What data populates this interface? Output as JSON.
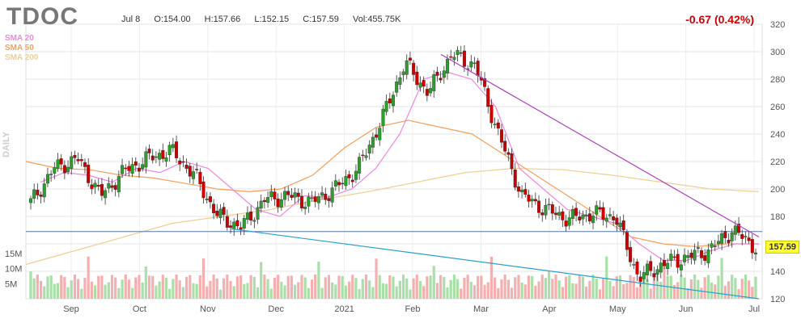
{
  "header": {
    "ticker": "TDOC",
    "date": "Jul 8",
    "open": "O:154.00",
    "high": "H:157.66",
    "low": "L:152.15",
    "close": "C:157.59",
    "volume": "Vol:455.75K",
    "change": "-0.67 (0.42%)",
    "side_label": "DAILY",
    "last_price": "157.59"
  },
  "legend": {
    "sma20": "SMA 20",
    "sma50": "SMA 50",
    "sma200": "SMA 200"
  },
  "colors": {
    "up": "#2ca02c",
    "down": "#cc0000",
    "sma20": "#ee88dd",
    "sma50": "#f5a05a",
    "sma200": "#f0d090",
    "trend_upper": "#b040c0",
    "trend_lower": "#2aa0d0",
    "level": "#5577aa",
    "vol_up": "#a8e0a8",
    "vol_down": "#f4b0b0"
  },
  "chart_data": {
    "type": "candlestick",
    "title": "TDOC",
    "price_axis": {
      "range": [
        120,
        320
      ],
      "ticks": [
        120,
        140,
        160,
        180,
        200,
        220,
        240,
        260,
        280,
        300,
        320
      ]
    },
    "volume_axis": {
      "ticks": [
        "5M",
        "10M",
        "15M"
      ],
      "values": [
        5,
        10,
        15
      ]
    },
    "x_labels": [
      "Sep",
      "Oct",
      "Nov",
      "Dec",
      "2021",
      "Feb",
      "Mar",
      "Apr",
      "May",
      "Jun",
      "Jul"
    ],
    "horizontal_level": 169,
    "trendlines": [
      {
        "name": "upper",
        "from": {
          "label": "Feb peak",
          "value": 298
        },
        "to": {
          "label": "Jul",
          "value": 165
        }
      },
      {
        "name": "lower",
        "from": {
          "label": "Nov low",
          "value": 171
        },
        "to": {
          "label": "Jul",
          "value": 120
        }
      }
    ],
    "close_anchors": [
      {
        "x": "Aug",
        "value": 190
      },
      {
        "x": "Aug end",
        "value": 215
      },
      {
        "x": "Sep start",
        "value": 222
      },
      {
        "x": "Sep",
        "value": 195
      },
      {
        "x": "Sep end",
        "value": 213
      },
      {
        "x": "Oct",
        "value": 222
      },
      {
        "x": "Oct mid",
        "value": 228
      },
      {
        "x": "Oct end",
        "value": 210
      },
      {
        "x": "Nov",
        "value": 180
      },
      {
        "x": "Nov 2",
        "value": 172
      },
      {
        "x": "Nov 3",
        "value": 192
      },
      {
        "x": "Dec",
        "value": 195
      },
      {
        "x": "Dec mid",
        "value": 190
      },
      {
        "x": "2021",
        "value": 200
      },
      {
        "x": "Jan",
        "value": 215
      },
      {
        "x": "Jan mid",
        "value": 250
      },
      {
        "x": "Jan end",
        "value": 292
      },
      {
        "x": "Feb",
        "value": 270
      },
      {
        "x": "Feb mid",
        "value": 298
      },
      {
        "x": "Feb end",
        "value": 290
      },
      {
        "x": "Mar",
        "value": 240
      },
      {
        "x": "Mar mid",
        "value": 195
      },
      {
        "x": "Mar end",
        "value": 185
      },
      {
        "x": "Apr",
        "value": 178
      },
      {
        "x": "Apr mid",
        "value": 182
      },
      {
        "x": "May",
        "value": 180
      },
      {
        "x": "May mid",
        "value": 135
      },
      {
        "x": "May end",
        "value": 145
      },
      {
        "x": "Jun",
        "value": 150
      },
      {
        "x": "Jun mid",
        "value": 155
      },
      {
        "x": "Jul",
        "value": 170
      },
      {
        "x": "Jul 8",
        "value": 157.59
      }
    ],
    "sma20": [
      205,
      212,
      210,
      205,
      215,
      212,
      220,
      215,
      200,
      185,
      180,
      195,
      194,
      200,
      215,
      240,
      280,
      285,
      280,
      260,
      215,
      200,
      185,
      180,
      175,
      160,
      148,
      148,
      155,
      160,
      160
    ],
    "sma50": [
      220,
      215,
      214,
      210,
      208,
      204,
      200,
      198,
      200,
      210,
      230,
      245,
      250,
      245,
      240,
      225,
      210,
      195,
      180,
      165,
      160,
      158,
      160,
      160
    ],
    "sma200": [
      145,
      155,
      165,
      175,
      180,
      185,
      192,
      198,
      205,
      212,
      215,
      214,
      210,
      205,
      200,
      198
    ]
  }
}
